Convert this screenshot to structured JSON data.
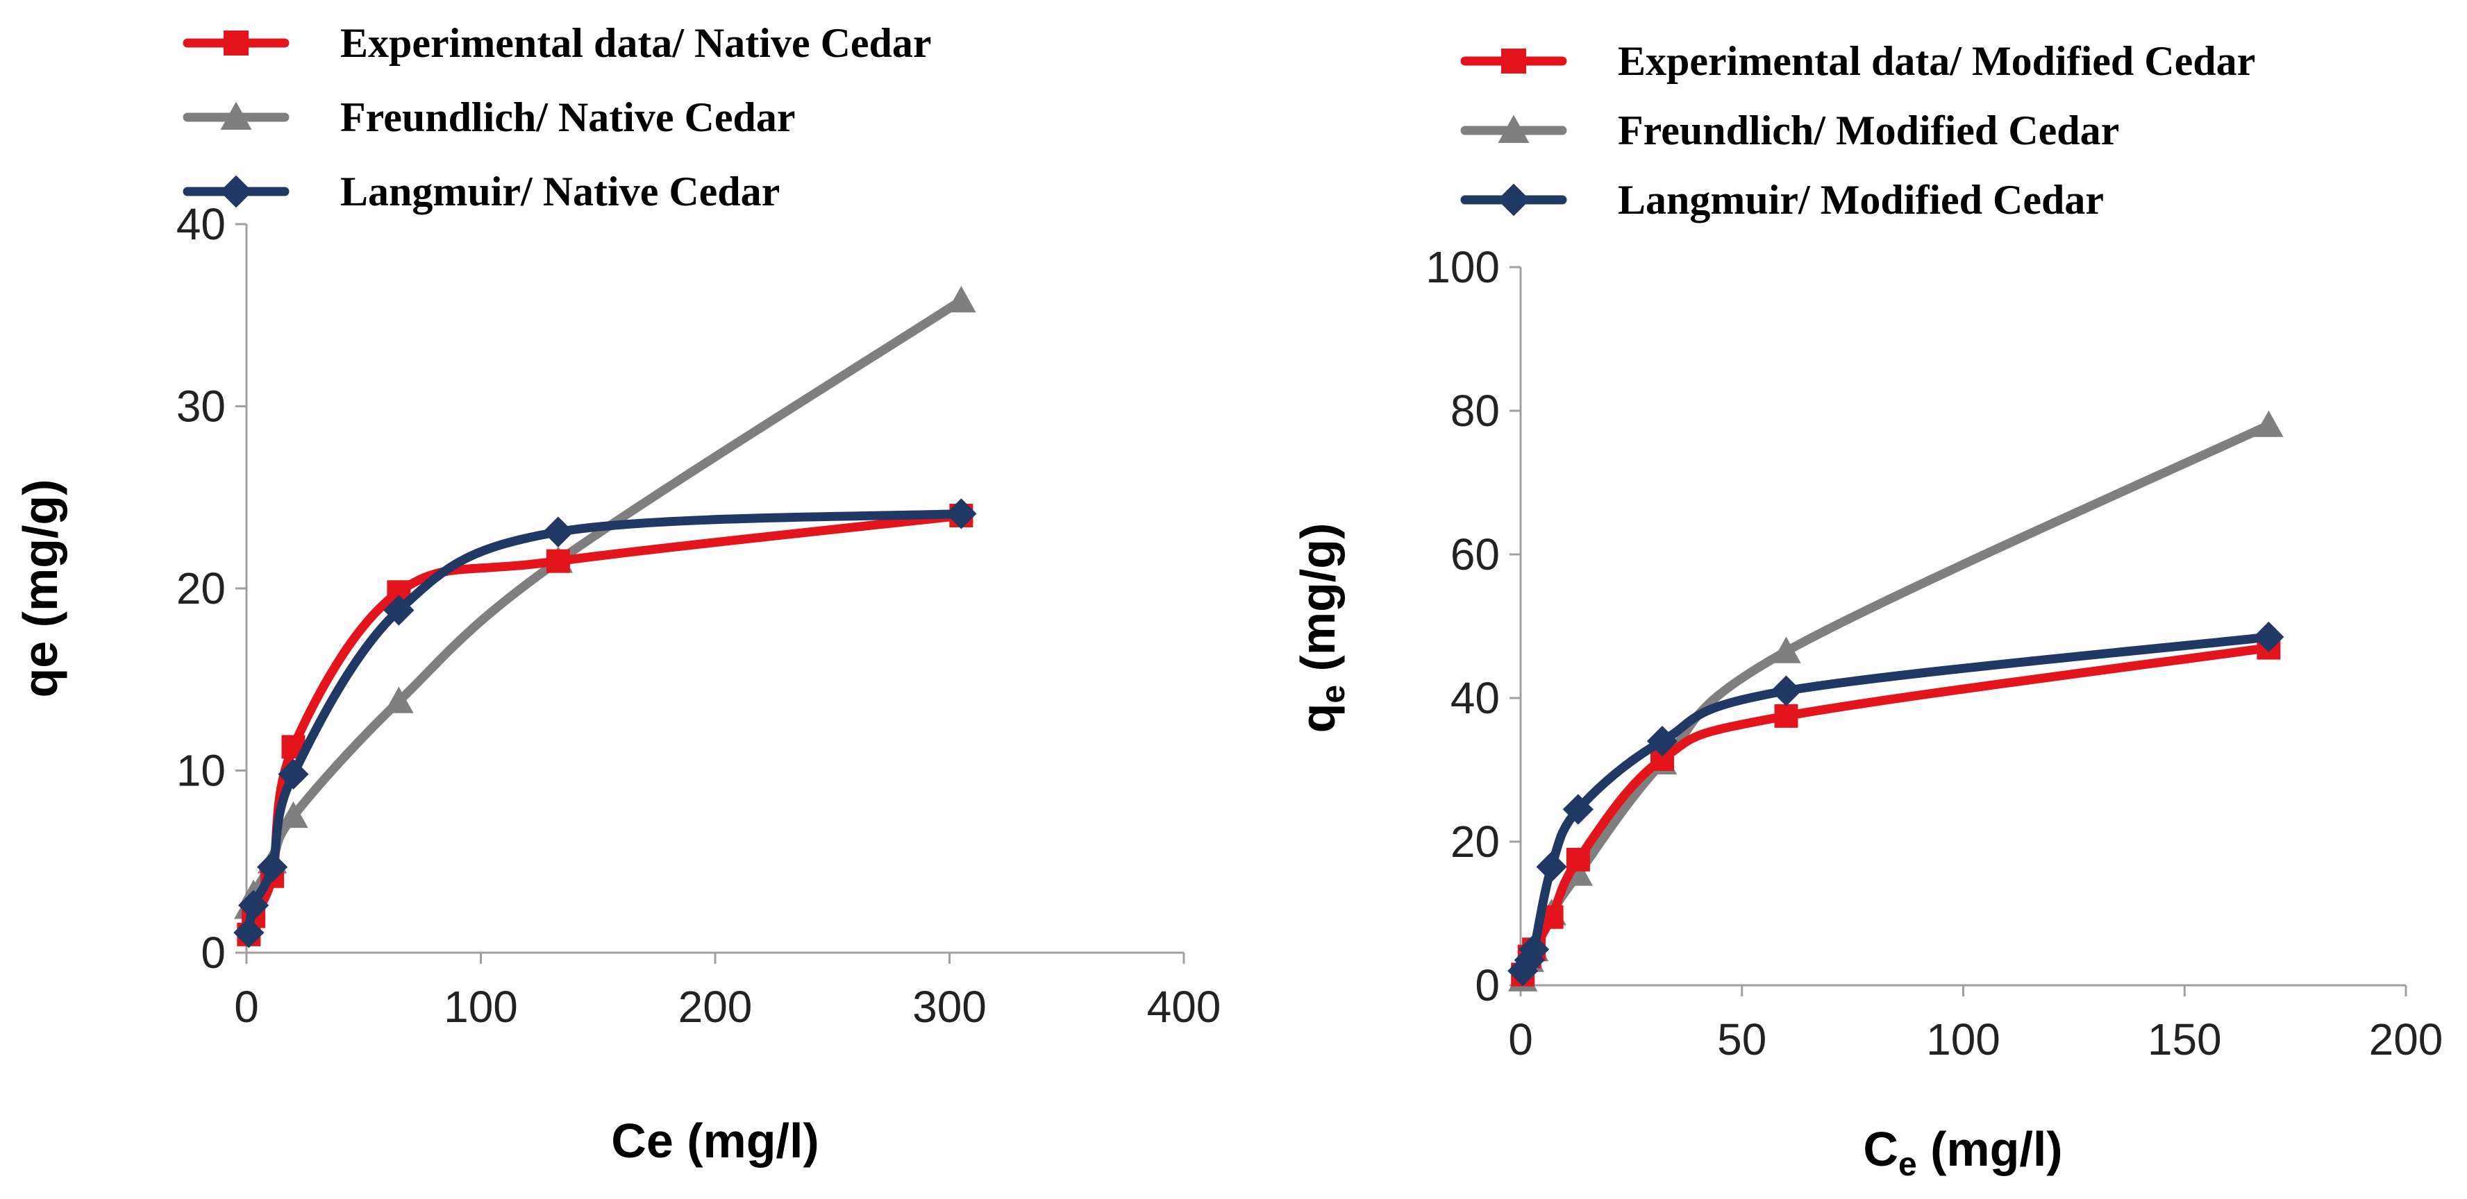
{
  "chart_data": [
    {
      "type": "line",
      "panel": "left",
      "title": "",
      "xlabel_main": "Ce",
      "xlabel_sub": "",
      "xlabel_unit": "(mg/l)",
      "ylabel_main": "qe",
      "ylabel_sub": "",
      "ylabel_unit": "(mg/g)",
      "xlim": [
        0,
        400
      ],
      "ylim": [
        0,
        40
      ],
      "xticks": [
        0,
        100,
        200,
        300,
        400
      ],
      "yticks": [
        0,
        10,
        20,
        30,
        40
      ],
      "legend_position": "top-left",
      "grid": false,
      "series": [
        {
          "name": "Experimental data/ Native Cedar",
          "color": "#e3141b",
          "marker": "square",
          "x": [
            1,
            3,
            11,
            20,
            65,
            133,
            305
          ],
          "y": [
            1.0,
            2.0,
            4.2,
            11.3,
            19.8,
            21.5,
            24.0
          ]
        },
        {
          "name": "Freundlich/ Native Cedar",
          "color": "#7f7f7f",
          "marker": "triangle",
          "x": [
            1,
            3,
            11,
            20,
            65,
            133,
            305
          ],
          "y": [
            2.5,
            3.2,
            5.0,
            7.5,
            13.8,
            21.5,
            35.8
          ]
        },
        {
          "name": "Langmuir/ Native Cedar",
          "color": "#1f3864",
          "marker": "diamond",
          "x": [
            1,
            3,
            11,
            20,
            65,
            133,
            305
          ],
          "y": [
            1.1,
            2.6,
            4.7,
            9.8,
            18.8,
            23.1,
            24.1
          ]
        }
      ]
    },
    {
      "type": "line",
      "panel": "right",
      "title": "",
      "xlabel_main": "C",
      "xlabel_sub": "e",
      "xlabel_unit": "(mg/l)",
      "ylabel_main": "q",
      "ylabel_sub": "e",
      "ylabel_unit": "(mg/g)",
      "xlim": [
        0,
        200
      ],
      "ylim": [
        0,
        100
      ],
      "xticks": [
        0,
        50,
        100,
        150,
        200
      ],
      "yticks": [
        0,
        20,
        40,
        60,
        80,
        100
      ],
      "legend_position": "top-left",
      "grid": false,
      "series": [
        {
          "name": "Experimental data/ Modified Cedar",
          "color": "#e3141b",
          "marker": "square",
          "x": [
            0.5,
            2,
            3,
            7,
            13,
            32,
            60,
            169
          ],
          "y": [
            1.5,
            4.0,
            5.0,
            9.5,
            17.5,
            31.5,
            37.5,
            47.0
          ]
        },
        {
          "name": "Freundlich/ Modified Cedar",
          "color": "#7f7f7f",
          "marker": "triangle",
          "x": [
            0.5,
            2,
            3,
            7,
            13,
            32,
            60,
            169
          ],
          "y": [
            0.8,
            3.5,
            5.0,
            10.0,
            15.5,
            31.0,
            46.5,
            78.0
          ]
        },
        {
          "name": "Langmuir/ Modified Cedar",
          "color": "#1f3864",
          "marker": "diamond",
          "x": [
            0.5,
            2,
            3,
            7,
            13,
            32,
            60,
            169
          ],
          "y": [
            2.0,
            3.5,
            5.0,
            16.5,
            24.5,
            34.0,
            41.0,
            48.5
          ]
        }
      ]
    }
  ]
}
